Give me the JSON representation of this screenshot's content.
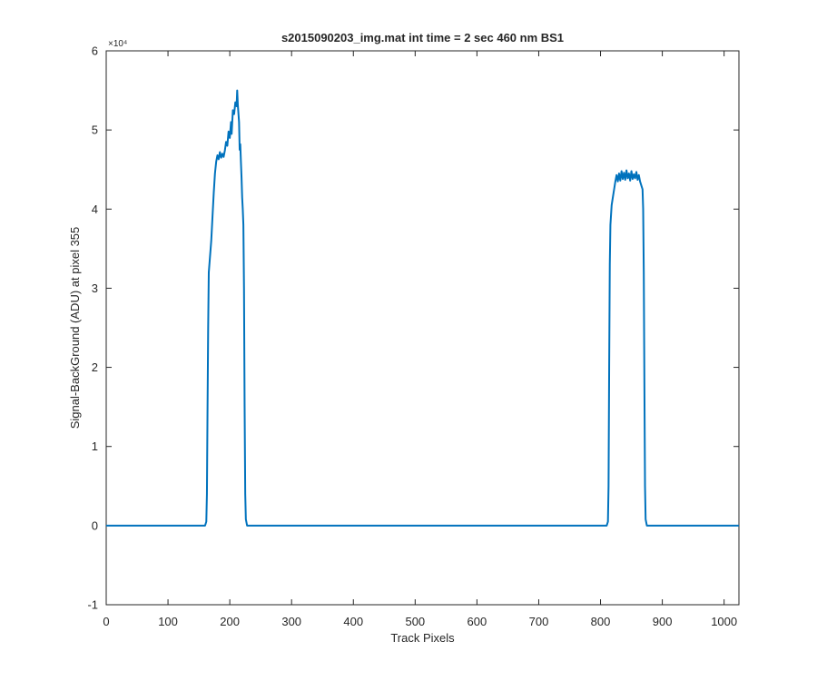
{
  "chart_data": {
    "type": "line",
    "title": "s2015090203_img.mat int time = 2 sec  460 nm BS1",
    "xlabel": "Track Pixels",
    "ylabel": "Signal-BackGround (ADU) at pixel 355",
    "xlim": [
      0,
      1024
    ],
    "ylim": [
      -10000,
      60000
    ],
    "x_ticks": [
      0,
      100,
      200,
      300,
      400,
      500,
      600,
      700,
      800,
      900,
      1000
    ],
    "x_tick_labels": [
      "0",
      "100",
      "200",
      "300",
      "400",
      "500",
      "600",
      "700",
      "800",
      "900",
      "1000"
    ],
    "y_ticks": [
      -10000,
      0,
      10000,
      20000,
      30000,
      40000,
      50000,
      60000
    ],
    "y_tick_labels": [
      "-1",
      "0",
      "1",
      "2",
      "3",
      "4",
      "5",
      "6"
    ],
    "y_exponent_label": "×10⁴",
    "grid": false,
    "box": true,
    "series": [
      {
        "color": "#0072BD",
        "points": [
          [
            0,
            0
          ],
          [
            160,
            0
          ],
          [
            162,
            500
          ],
          [
            163,
            4000
          ],
          [
            164,
            15000
          ],
          [
            165,
            25000
          ],
          [
            166,
            32000
          ],
          [
            168,
            34000
          ],
          [
            170,
            36000
          ],
          [
            172,
            39000
          ],
          [
            174,
            42000
          ],
          [
            176,
            44500
          ],
          [
            178,
            46000
          ],
          [
            180,
            46800
          ],
          [
            182,
            46300
          ],
          [
            184,
            47200
          ],
          [
            186,
            46500
          ],
          [
            188,
            47000
          ],
          [
            190,
            46600
          ],
          [
            192,
            47400
          ],
          [
            194,
            48500
          ],
          [
            196,
            48000
          ],
          [
            198,
            49800
          ],
          [
            200,
            49000
          ],
          [
            202,
            51000
          ],
          [
            203,
            49500
          ],
          [
            205,
            52500
          ],
          [
            207,
            52000
          ],
          [
            209,
            53500
          ],
          [
            211,
            53000
          ],
          [
            212,
            55000
          ],
          [
            213,
            53200
          ],
          [
            215,
            51000
          ],
          [
            216,
            47500
          ],
          [
            217,
            48200
          ],
          [
            218,
            46000
          ],
          [
            219,
            44000
          ],
          [
            220,
            41500
          ],
          [
            221,
            40000
          ],
          [
            222,
            38000
          ],
          [
            223,
            30000
          ],
          [
            224,
            15000
          ],
          [
            225,
            4000
          ],
          [
            226,
            800
          ],
          [
            228,
            0
          ],
          [
            810,
            0
          ],
          [
            812,
            500
          ],
          [
            813,
            5000
          ],
          [
            814,
            20000
          ],
          [
            815,
            33000
          ],
          [
            816,
            38000
          ],
          [
            818,
            40500
          ],
          [
            820,
            41500
          ],
          [
            822,
            42500
          ],
          [
            824,
            43500
          ],
          [
            826,
            44300
          ],
          [
            828,
            43500
          ],
          [
            830,
            44500
          ],
          [
            832,
            43600
          ],
          [
            834,
            44800
          ],
          [
            836,
            43800
          ],
          [
            838,
            44600
          ],
          [
            840,
            43700
          ],
          [
            842,
            44900
          ],
          [
            844,
            43900
          ],
          [
            846,
            44500
          ],
          [
            848,
            43600
          ],
          [
            850,
            44800
          ],
          [
            852,
            43800
          ],
          [
            854,
            44400
          ],
          [
            856,
            43900
          ],
          [
            858,
            44700
          ],
          [
            860,
            43700
          ],
          [
            862,
            44300
          ],
          [
            864,
            43500
          ],
          [
            866,
            43000
          ],
          [
            868,
            42500
          ],
          [
            869,
            40000
          ],
          [
            870,
            32000
          ],
          [
            871,
            18000
          ],
          [
            872,
            5000
          ],
          [
            873,
            800
          ],
          [
            875,
            0
          ],
          [
            1024,
            0
          ]
        ]
      }
    ]
  }
}
